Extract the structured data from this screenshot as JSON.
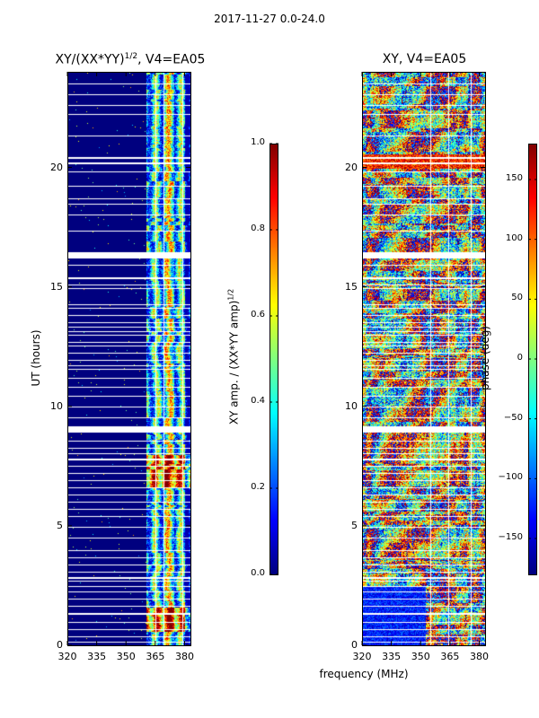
{
  "figure": {
    "suptitle": "2017-11-27 0.0-24.0",
    "xlabel": "frequency (MHz)"
  },
  "chart_data": [
    {
      "type": "heatmap",
      "title": "XY/(XX*YY)",
      "title_exponent": "1/2",
      "title_suffix": ", V4=EA05",
      "xlabel": "",
      "ylabel": "UT (hours)",
      "x_ticks": [
        320,
        335,
        350,
        365,
        380
      ],
      "y_ticks": [
        0,
        5,
        10,
        15,
        20
      ],
      "xlim": [
        320,
        383
      ],
      "ylim": [
        0,
        24
      ],
      "colorbar": {
        "label": "XY amp. / (XX*YY amp)",
        "label_exponent": "1/2",
        "range": [
          0.0,
          1.0
        ],
        "ticks": [
          "0.0",
          "0.2",
          "0.4",
          "0.6",
          "0.8",
          "1.0"
        ],
        "colormap": "jet"
      },
      "notes": "Low amplitude (~0) across 320-360 MHz; high values (0.3-1.0) in 360-380 MHz band; strongest near 6-8 h and ~1 h."
    },
    {
      "type": "heatmap",
      "title": "XY, V4=EA05",
      "xlabel": "frequency (MHz)",
      "ylabel": "",
      "x_ticks": [
        320,
        335,
        350,
        365,
        380
      ],
      "y_ticks": [
        0,
        5,
        10,
        15,
        20
      ],
      "xlim": [
        320,
        383
      ],
      "ylim": [
        0,
        24
      ],
      "colorbar": {
        "label": "phase (deg)",
        "range": [
          -180,
          180
        ],
        "ticks": [
          "−150",
          "−100",
          "−50",
          "0",
          "50",
          "100",
          "150"
        ],
        "tick_values": [
          -150,
          -100,
          -50,
          0,
          50,
          100,
          150
        ],
        "colormap": "jet"
      },
      "notes": "Noisy phase across full band, values spanning -180..180 deg."
    }
  ],
  "colors": {
    "jet_dark_blue": "#00007f",
    "gap": "#ffffff"
  }
}
